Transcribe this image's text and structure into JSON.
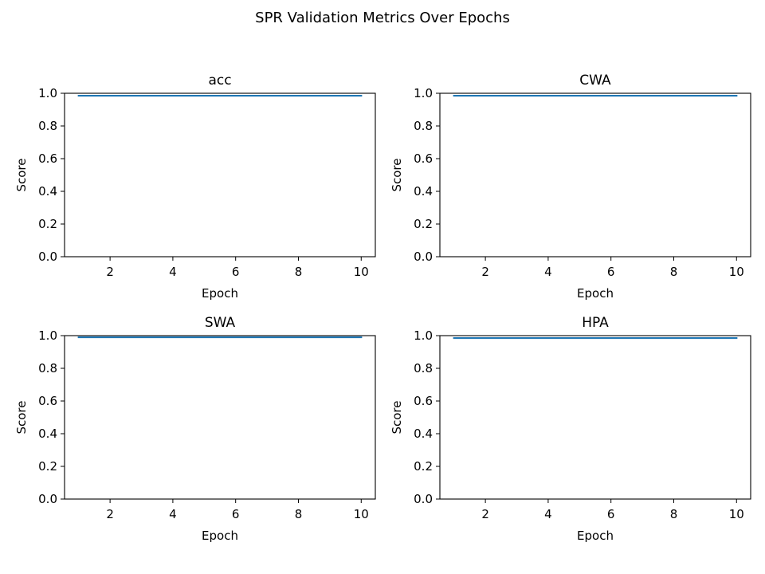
{
  "figure": {
    "title": "SPR Validation Metrics Over Epochs"
  },
  "chart_data": [
    {
      "type": "line",
      "title": "acc",
      "xlabel": "Epoch",
      "ylabel": "Score",
      "xlim": [
        0.55,
        10.45
      ],
      "ylim": [
        0.0,
        1.0
      ],
      "xticks": [
        2,
        4,
        6,
        8,
        10
      ],
      "yticks": [
        0.0,
        0.2,
        0.4,
        0.6,
        0.8,
        1.0
      ],
      "grid": false,
      "series": [
        {
          "color": "#1f77b4",
          "x": [
            1,
            2,
            3,
            4,
            5,
            6,
            7,
            8,
            9,
            10
          ],
          "values": [
            0.985,
            0.985,
            0.985,
            0.985,
            0.985,
            0.985,
            0.985,
            0.985,
            0.985,
            0.985
          ]
        }
      ]
    },
    {
      "type": "line",
      "title": "CWA",
      "xlabel": "Epoch",
      "ylabel": "Score",
      "xlim": [
        0.55,
        10.45
      ],
      "ylim": [
        0.0,
        1.0
      ],
      "xticks": [
        2,
        4,
        6,
        8,
        10
      ],
      "yticks": [
        0.0,
        0.2,
        0.4,
        0.6,
        0.8,
        1.0
      ],
      "grid": false,
      "series": [
        {
          "color": "#1f77b4",
          "x": [
            1,
            2,
            3,
            4,
            5,
            6,
            7,
            8,
            9,
            10
          ],
          "values": [
            0.985,
            0.985,
            0.985,
            0.985,
            0.985,
            0.985,
            0.985,
            0.985,
            0.985,
            0.985
          ]
        }
      ]
    },
    {
      "type": "line",
      "title": "SWA",
      "xlabel": "Epoch",
      "ylabel": "Score",
      "xlim": [
        0.55,
        10.45
      ],
      "ylim": [
        0.0,
        1.0
      ],
      "xticks": [
        2,
        4,
        6,
        8,
        10
      ],
      "yticks": [
        0.0,
        0.2,
        0.4,
        0.6,
        0.8,
        1.0
      ],
      "grid": false,
      "series": [
        {
          "color": "#1f77b4",
          "x": [
            1,
            2,
            3,
            4,
            5,
            6,
            7,
            8,
            9,
            10
          ],
          "values": [
            0.99,
            0.99,
            0.99,
            0.99,
            0.99,
            0.99,
            0.99,
            0.99,
            0.99,
            0.99
          ]
        }
      ]
    },
    {
      "type": "line",
      "title": "HPA",
      "xlabel": "Epoch",
      "ylabel": "Score",
      "xlim": [
        0.55,
        10.45
      ],
      "ylim": [
        0.0,
        1.0
      ],
      "xticks": [
        2,
        4,
        6,
        8,
        10
      ],
      "yticks": [
        0.0,
        0.2,
        0.4,
        0.6,
        0.8,
        1.0
      ],
      "grid": false,
      "series": [
        {
          "color": "#1f77b4",
          "x": [
            1,
            2,
            3,
            4,
            5,
            6,
            7,
            8,
            9,
            10
          ],
          "values": [
            0.985,
            0.985,
            0.985,
            0.985,
            0.985,
            0.985,
            0.985,
            0.985,
            0.985,
            0.985
          ]
        }
      ]
    }
  ]
}
